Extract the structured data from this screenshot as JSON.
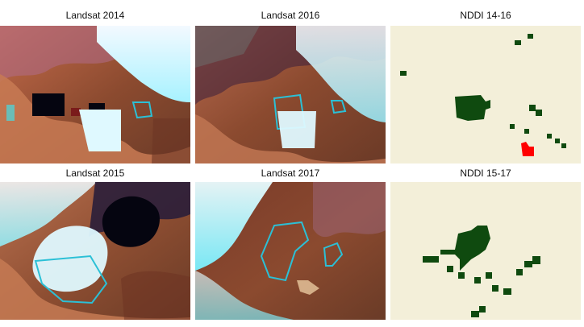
{
  "titles": {
    "top_left": "Landsat 2014",
    "top_middle": "Landsat 2016",
    "top_right": "NDDI 14-16",
    "bottom_left": "Landsat 2015",
    "bottom_middle": "Landsat 2017",
    "bottom_right": "NDDI 15-17"
  },
  "colors": {
    "ndd_background": "#f3efd9",
    "ndd_dark_green": "#0f4a0f",
    "ndd_red": "#ff0000",
    "outline_cyan": "#2bc0d6",
    "landsat_brown": "#8b4a2f",
    "landsat_cyan": "#8ff3ff",
    "landsat_dark": "#2a1e3a"
  }
}
